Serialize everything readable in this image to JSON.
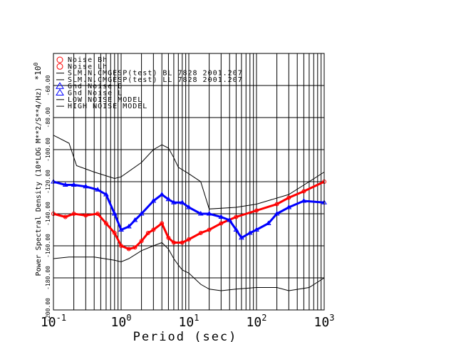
{
  "chart_data": {
    "type": "line",
    "xlabel": "Period (sec)",
    "ylabel": "Power Spectral Density (10*LOG M**2/S**4/Hz)",
    "y_multiplier": "*10",
    "y_multiplier_exp": "0",
    "xscale": "log",
    "xlim": [
      0.1,
      1000
    ],
    "ylim": [
      -200,
      -40
    ],
    "grid": true,
    "x_ticks": [
      {
        "base": "10",
        "exp": "-1",
        "value": 0.1
      },
      {
        "base": "10",
        "exp": "0",
        "value": 1
      },
      {
        "base": "10",
        "exp": "1",
        "value": 10
      },
      {
        "base": "10",
        "exp": "2",
        "value": 100
      },
      {
        "base": "10",
        "exp": "3",
        "value": 1000
      }
    ],
    "y_ticks": [
      {
        "label": "-60.00",
        "value": -60
      },
      {
        "label": "-80.00",
        "value": -80
      },
      {
        "label": "-100.00",
        "value": -100
      },
      {
        "label": "-120.00",
        "value": -120
      },
      {
        "label": "-140.00",
        "value": -140
      },
      {
        "label": "-160.00",
        "value": -160
      },
      {
        "label": "-180.00",
        "value": -180
      },
      {
        "label": "-200.00",
        "value": -200
      }
    ],
    "legend_position": "top-left",
    "legend": [
      {
        "label": "Noise Bh",
        "color": "#ff0000",
        "marker": "circle"
      },
      {
        "label": "Noise Lh",
        "color": "#ff0000",
        "marker": "circle"
      },
      {
        "label": "SLM.N.CMGESP(test) BL 7828 2001.207",
        "color": "#000000",
        "marker": "line"
      },
      {
        "label": "SLM.N.CMGESP(test) LL 7828 2001.207",
        "color": "#000000",
        "marker": "line"
      },
      {
        "label": "Gnd Noise B",
        "color": "#0000ff",
        "marker": "triangle"
      },
      {
        "label": "Gnd Noise L",
        "color": "#0000ff",
        "marker": "triangle"
      },
      {
        "label": "LOW NOISE MODEL",
        "color": "#000000",
        "marker": "line"
      },
      {
        "label": "HIGH NOISE MODEL",
        "color": "#000000",
        "marker": "line"
      }
    ],
    "series": [
      {
        "name": "Noise Bh / Noise Lh",
        "color": "#ff0000",
        "marker": "circle",
        "x": [
          0.1,
          0.15,
          0.2,
          0.3,
          0.45,
          0.6,
          0.8,
          1,
          1.3,
          1.6,
          2,
          2.5,
          3,
          4,
          5,
          6,
          8,
          10,
          15,
          20,
          30,
          50,
          100,
          200,
          300,
          500,
          1000
        ],
        "y": [
          -140,
          -142,
          -140,
          -141,
          -140,
          -146,
          -152,
          -160,
          -162,
          -161,
          -157,
          -152,
          -150,
          -146,
          -155,
          -158,
          -158,
          -156,
          -152,
          -150,
          -146,
          -142,
          -138,
          -134,
          -130,
          -126,
          -120
        ]
      },
      {
        "name": "Gnd Noise B / Gnd Noise L",
        "color": "#0000ff",
        "marker": "triangle",
        "x": [
          0.1,
          0.15,
          0.2,
          0.3,
          0.45,
          0.6,
          0.8,
          1,
          1.3,
          1.6,
          2,
          3,
          4,
          5,
          6,
          8,
          10,
          15,
          20,
          30,
          40,
          50,
          60,
          80,
          100,
          150,
          200,
          300,
          500,
          1000
        ],
        "y": [
          -120,
          -122,
          -122,
          -123,
          -125,
          -128,
          -140,
          -150,
          -148,
          -144,
          -140,
          -132,
          -128,
          -131,
          -133,
          -133,
          -136,
          -140,
          -140,
          -142,
          -144,
          -150,
          -155,
          -152,
          -150,
          -146,
          -140,
          -136,
          -132,
          -133
        ]
      },
      {
        "name": "HIGH NOISE MODEL",
        "color": "#000000",
        "marker": "none",
        "x": [
          0.1,
          0.17,
          0.22,
          0.4,
          0.8,
          1,
          2,
          3,
          4,
          5,
          6,
          7,
          10,
          15,
          20,
          50,
          100,
          300,
          600,
          1000
        ],
        "y": [
          -91,
          -96,
          -110,
          -114,
          -118,
          -117,
          -108,
          -100,
          -97,
          -99,
          -105,
          -111,
          -115,
          -120,
          -137,
          -136,
          -134,
          -128,
          -120,
          -114
        ]
      },
      {
        "name": "LOW NOISE MODEL",
        "color": "#000000",
        "marker": "none",
        "x": [
          0.1,
          0.17,
          0.4,
          0.8,
          1,
          1.3,
          2,
          3,
          4,
          5,
          6,
          7,
          8,
          10,
          15,
          20,
          30,
          50,
          100,
          200,
          300,
          600,
          1000
        ],
        "y": [
          -168,
          -167,
          -167,
          -169,
          -170,
          -168,
          -163,
          -160,
          -158,
          -162,
          -168,
          -172,
          -175,
          -177,
          -184,
          -187,
          -188,
          -187,
          -186,
          -186,
          -188,
          -186,
          -180
        ]
      }
    ]
  }
}
